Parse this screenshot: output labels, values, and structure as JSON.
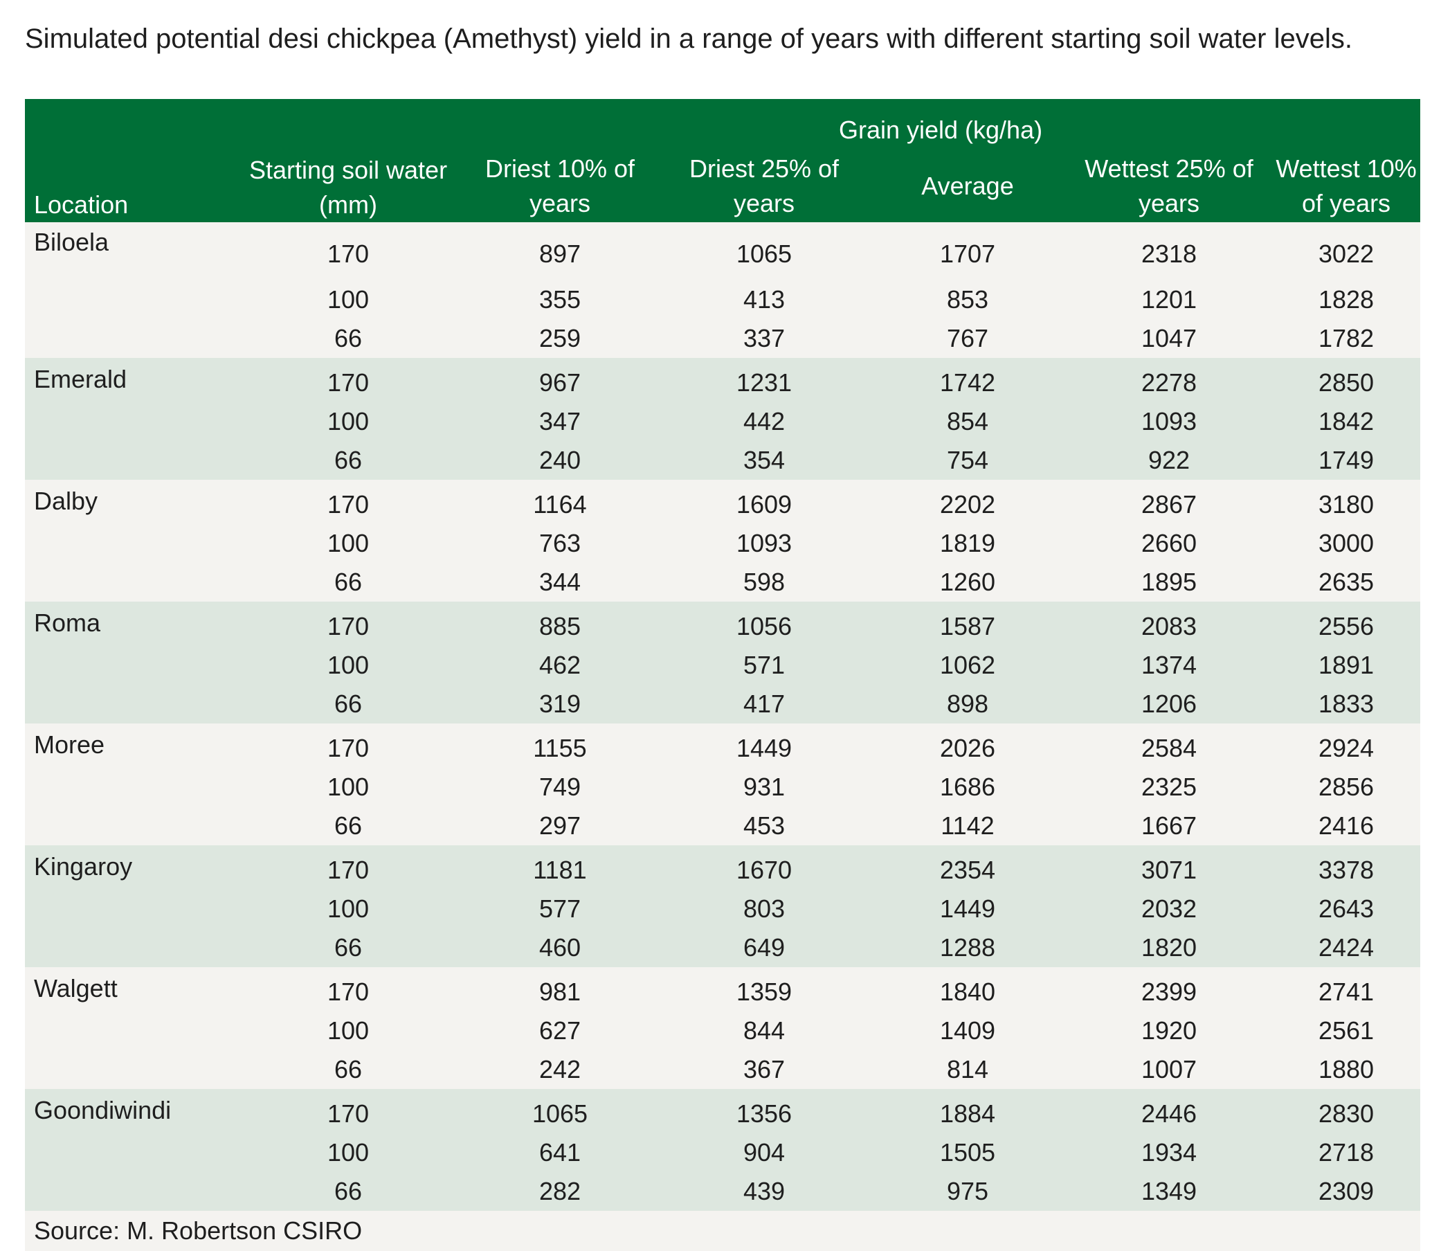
{
  "title": "Simulated potential desi chickpea (Amethyst) yield in a range of years with different starting soil water levels.",
  "headers": {
    "location": "Location",
    "soil_water": "Starting soil water (mm)",
    "grain_yield": "Grain yield (kg/ha)",
    "driest10": "Driest 10% of years",
    "driest25": "Driest 25% of years",
    "average": "Average",
    "wettest25": "Wettest 25% of years",
    "wettest10": "Wettest 10% of years"
  },
  "groups": [
    {
      "location": "Biloela",
      "rows": [
        [
          "170",
          "897",
          "1065",
          "1707",
          "2318",
          "3022"
        ],
        [
          "100",
          "355",
          "413",
          "853",
          "1201",
          "1828"
        ],
        [
          "66",
          "259",
          "337",
          "767",
          "1047",
          "1782"
        ]
      ]
    },
    {
      "location": "Emerald",
      "rows": [
        [
          "170",
          "967",
          "1231",
          "1742",
          "2278",
          "2850"
        ],
        [
          "100",
          "347",
          "442",
          "854",
          "1093",
          "1842"
        ],
        [
          "66",
          "240",
          "354",
          "754",
          "922",
          "1749"
        ]
      ]
    },
    {
      "location": "Dalby",
      "rows": [
        [
          "170",
          "1164",
          "1609",
          "2202",
          "2867",
          "3180"
        ],
        [
          "100",
          "763",
          "1093",
          "1819",
          "2660",
          "3000"
        ],
        [
          "66",
          "344",
          "598",
          "1260",
          "1895",
          "2635"
        ]
      ]
    },
    {
      "location": "Roma",
      "rows": [
        [
          "170",
          "885",
          "1056",
          "1587",
          "2083",
          "2556"
        ],
        [
          "100",
          "462",
          "571",
          "1062",
          "1374",
          "1891"
        ],
        [
          "66",
          "319",
          "417",
          "898",
          "1206",
          "1833"
        ]
      ]
    },
    {
      "location": "Moree",
      "rows": [
        [
          "170",
          "1155",
          "1449",
          "2026",
          "2584",
          "2924"
        ],
        [
          "100",
          "749",
          "931",
          "1686",
          "2325",
          "2856"
        ],
        [
          "66",
          "297",
          "453",
          "1142",
          "1667",
          "2416"
        ]
      ]
    },
    {
      "location": "Kingaroy",
      "rows": [
        [
          "170",
          "1181",
          "1670",
          "2354",
          "3071",
          "3378"
        ],
        [
          "100",
          "577",
          "803",
          "1449",
          "2032",
          "2643"
        ],
        [
          "66",
          "460",
          "649",
          "1288",
          "1820",
          "2424"
        ]
      ]
    },
    {
      "location": "Walgett",
      "rows": [
        [
          "170",
          "981",
          "1359",
          "1840",
          "2399",
          "2741"
        ],
        [
          "100",
          "627",
          "844",
          "1409",
          "1920",
          "2561"
        ],
        [
          "66",
          "242",
          "367",
          "814",
          "1007",
          "1880"
        ]
      ]
    },
    {
      "location": "Goondiwindi",
      "rows": [
        [
          "170",
          "1065",
          "1356",
          "1884",
          "2446",
          "2830"
        ],
        [
          "100",
          "641",
          "904",
          "1505",
          "1934",
          "2718"
        ],
        [
          "66",
          "282",
          "439",
          "975",
          "1349",
          "2309"
        ]
      ]
    }
  ],
  "source": "Source: M. Robertson CSIRO",
  "colors": {
    "header_bg": "#006f37",
    "band_light": "#f4f3f0",
    "band_green": "#dde7df"
  }
}
